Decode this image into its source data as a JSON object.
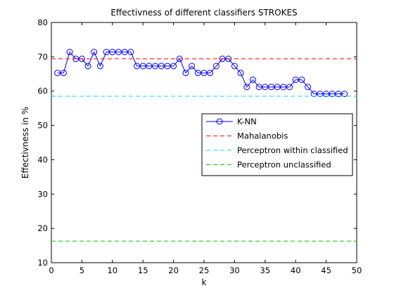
{
  "chart_data": {
    "type": "line",
    "title": "Effectivness of different classifiers STROKES",
    "xlabel": "k",
    "ylabel": "Effectivness in %",
    "xlim": [
      0,
      50
    ],
    "ylim": [
      10,
      80
    ],
    "xticks": [
      0,
      5,
      10,
      15,
      20,
      25,
      30,
      35,
      40,
      45,
      50
    ],
    "yticks": [
      10,
      20,
      30,
      40,
      50,
      60,
      70,
      80
    ],
    "grid": false,
    "legend_position": "center-right",
    "series": [
      {
        "name": "K-NN",
        "style": "solid-circles",
        "color": "#0000ff",
        "x": [
          1,
          2,
          3,
          4,
          5,
          6,
          7,
          8,
          9,
          10,
          11,
          12,
          13,
          14,
          15,
          16,
          17,
          18,
          19,
          20,
          21,
          22,
          23,
          24,
          25,
          26,
          27,
          28,
          29,
          30,
          31,
          32,
          33,
          34,
          35,
          36,
          37,
          38,
          39,
          40,
          41,
          42,
          43,
          44,
          45,
          46,
          47,
          48
        ],
        "y": [
          65.3,
          65.3,
          71.4,
          69.4,
          69.4,
          67.3,
          71.4,
          67.3,
          71.4,
          71.4,
          71.4,
          71.4,
          71.4,
          67.3,
          67.3,
          67.3,
          67.3,
          67.3,
          67.3,
          67.3,
          69.4,
          65.3,
          67.3,
          65.3,
          65.3,
          65.3,
          67.3,
          69.4,
          69.4,
          67.3,
          65.3,
          61.2,
          63.3,
          61.2,
          61.2,
          61.2,
          61.2,
          61.2,
          61.2,
          63.3,
          63.3,
          61.2,
          59.2,
          59.2,
          59.2,
          59.2,
          59.2,
          59.2
        ]
      },
      {
        "name": "Mahalanobis",
        "style": "dashed",
        "color": "#ff0000",
        "x": [
          0,
          50
        ],
        "y": [
          69.4,
          69.4
        ]
      },
      {
        "name": "Perceptron within classified",
        "style": "dashed",
        "color": "#00dddd",
        "x": [
          0,
          50
        ],
        "y": [
          58.5,
          58.5
        ]
      },
      {
        "name": "Perceptron unclassified",
        "style": "dashed",
        "color": "#00cc00",
        "x": [
          0,
          50
        ],
        "y": [
          16.3,
          16.3
        ]
      }
    ]
  }
}
